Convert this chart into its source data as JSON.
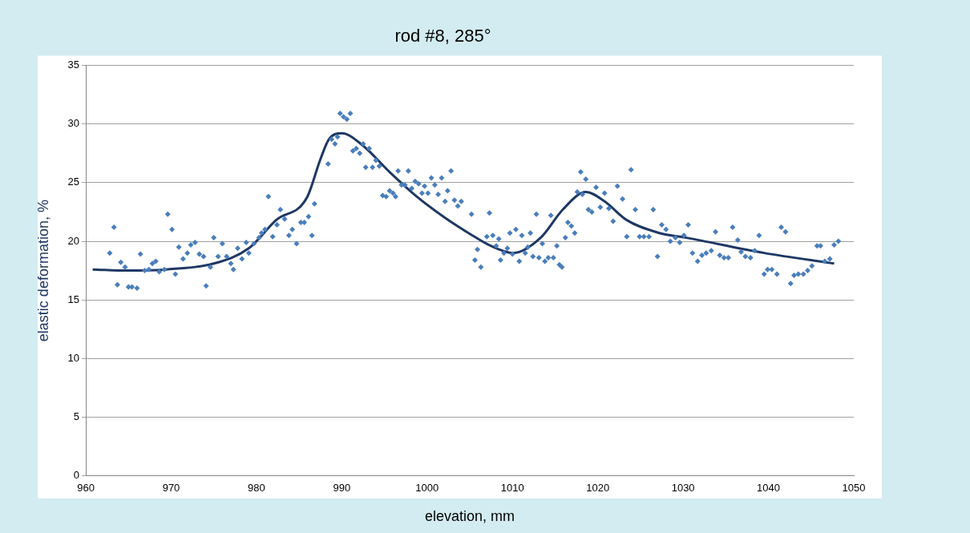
{
  "chart_data": {
    "type": "scatter",
    "title": "rod #8, 285°",
    "xlabel": "elevation, mm",
    "ylabel": "elastic deformation, %",
    "xlim": [
      960,
      1050
    ],
    "xticks": [
      960,
      970,
      980,
      990,
      1000,
      1010,
      1020,
      1030,
      1040,
      1050
    ],
    "ylim": [
      0,
      35
    ],
    "yticks": [
      0,
      5,
      10,
      15,
      20,
      25,
      30,
      35
    ],
    "grid": "y",
    "legend": false,
    "series": [
      {
        "color": "#4a7ebb",
        "marker": "diamond",
        "x": [
          962.8,
          963.3,
          963.7,
          964.1,
          964.6,
          965.0,
          965.4,
          966.0,
          966.4,
          966.9,
          967.4,
          967.8,
          968.2,
          968.6,
          969.2,
          969.6,
          970.1,
          970.5,
          970.9,
          971.4,
          971.9,
          972.3,
          972.8,
          973.3,
          973.8,
          974.1,
          974.6,
          975.0,
          975.5,
          976.0,
          976.5,
          977.0,
          977.3,
          977.8,
          978.3,
          978.8,
          979.1,
          979.7,
          980.3,
          980.6,
          981.0,
          981.4,
          981.9,
          982.4,
          982.8,
          983.3,
          983.8,
          984.2,
          984.7,
          985.2,
          985.6,
          986.1,
          986.5,
          986.8,
          988.4,
          988.8,
          989.2,
          989.5,
          989.8,
          990.2,
          990.6,
          991.0,
          991.3,
          991.7,
          992.1,
          992.5,
          992.8,
          993.2,
          993.6,
          994.0,
          994.4,
          994.8,
          995.2,
          995.6,
          996.0,
          996.3,
          996.6,
          997.0,
          997.4,
          997.8,
          998.2,
          998.6,
          999.0,
          999.4,
          999.7,
          1000.1,
          1000.5,
          1000.9,
          1001.3,
          1001.7,
          1002.1,
          1002.4,
          1002.8,
          1003.2,
          1003.6,
          1004.0,
          1005.2,
          1005.6,
          1005.9,
          1006.3,
          1007.0,
          1007.3,
          1007.7,
          1008.1,
          1008.4,
          1008.6,
          1009.0,
          1009.4,
          1009.7,
          1010.0,
          1010.4,
          1010.8,
          1011.1,
          1011.5,
          1011.8,
          1012.1,
          1012.4,
          1012.8,
          1013.1,
          1013.5,
          1013.8,
          1014.2,
          1014.5,
          1014.8,
          1015.2,
          1015.5,
          1015.8,
          1016.2,
          1016.5,
          1016.9,
          1017.3,
          1017.6,
          1018.0,
          1018.2,
          1018.6,
          1018.9,
          1019.3,
          1019.8,
          1020.3,
          1020.8,
          1021.3,
          1021.8,
          1022.3,
          1022.9,
          1023.4,
          1023.9,
          1024.4,
          1024.9,
          1025.4,
          1026.0,
          1026.5,
          1027.0,
          1027.5,
          1028.0,
          1028.5,
          1029.1,
          1029.6,
          1030.1,
          1030.6,
          1031.1,
          1031.7,
          1032.2,
          1032.7,
          1033.3,
          1033.8,
          1034.3,
          1034.8,
          1035.3,
          1035.8,
          1036.4,
          1036.8,
          1037.3,
          1037.9,
          1038.4,
          1038.9,
          1039.5,
          1039.9,
          1040.4,
          1041.0,
          1041.5,
          1042.0,
          1042.6,
          1043.0,
          1043.5,
          1044.1,
          1044.6,
          1045.1,
          1045.7,
          1046.1,
          1046.6,
          1047.2,
          1047.7,
          1048.2
        ],
        "values": [
          19.0,
          21.2,
          16.3,
          18.2,
          17.8,
          16.1,
          16.1,
          16.0,
          18.9,
          17.5,
          17.6,
          18.1,
          18.3,
          17.4,
          17.6,
          22.3,
          21.0,
          17.2,
          19.5,
          18.5,
          19.0,
          19.7,
          19.9,
          18.9,
          18.7,
          16.2,
          17.8,
          20.3,
          18.7,
          19.8,
          18.7,
          18.1,
          17.6,
          19.4,
          18.5,
          19.9,
          19.0,
          19.8,
          20.3,
          20.7,
          21.0,
          23.8,
          20.4,
          21.4,
          22.7,
          21.9,
          20.5,
          21.0,
          19.8,
          21.6,
          21.6,
          22.1,
          20.5,
          23.2,
          26.6,
          28.7,
          28.3,
          28.9,
          30.9,
          30.6,
          30.4,
          30.9,
          27.7,
          27.9,
          27.5,
          28.3,
          26.3,
          27.9,
          26.3,
          26.9,
          26.4,
          23.9,
          23.8,
          24.3,
          24.1,
          23.8,
          26.0,
          24.8,
          24.8,
          26.0,
          24.5,
          25.1,
          24.9,
          24.1,
          24.7,
          24.1,
          25.4,
          24.8,
          24.0,
          25.4,
          23.4,
          24.3,
          26.0,
          23.5,
          23.0,
          23.4,
          22.3,
          18.4,
          19.3,
          17.8,
          20.4,
          22.4,
          20.5,
          19.6,
          20.2,
          18.4,
          19.0,
          19.4,
          20.7,
          18.9,
          21.0,
          18.3,
          20.5,
          19.0,
          19.5,
          20.7,
          18.7,
          22.3,
          18.6,
          19.8,
          18.3,
          18.6,
          22.2,
          18.6,
          19.6,
          18.0,
          17.8,
          20.3,
          21.6,
          21.3,
          20.7,
          24.2,
          25.9,
          24.0,
          25.3,
          22.7,
          22.5,
          24.6,
          22.9,
          24.1,
          22.8,
          21.7,
          24.7,
          23.6,
          20.4,
          26.1,
          22.7,
          20.4,
          20.4,
          20.4,
          22.7,
          18.7,
          21.4,
          21.0,
          20.0,
          20.3,
          19.9,
          20.5,
          21.4,
          19.0,
          18.3,
          18.8,
          19.0,
          19.2,
          20.8,
          18.8,
          18.6,
          18.6,
          21.2,
          20.1,
          19.1,
          18.7,
          18.6,
          19.2,
          20.5,
          17.2,
          17.6,
          17.6,
          17.2,
          21.2,
          20.8,
          16.4,
          17.1,
          17.2,
          17.2,
          17.5,
          17.9,
          19.6,
          19.6,
          18.3,
          18.5,
          19.7,
          20.0
        ]
      },
      {
        "type": "line",
        "color": "#1f3864",
        "marker": "none",
        "line_style": "solid",
        "x": [
          960.8,
          965.0,
          969.4,
          975.0,
          979.1,
          982.3,
          985.9,
          987.5,
          988.5,
          990.0,
          992.4,
          995.6,
          998.8,
          1002.1,
          1005.3,
          1007.2,
          1010.1,
          1013.3,
          1015.9,
          1018.6,
          1020.8,
          1023.4,
          1027.2,
          1030.4,
          1039.5,
          1047.7
        ],
        "values": [
          17.6,
          17.5,
          17.6,
          18.1,
          19.4,
          21.8,
          23.7,
          27.0,
          28.7,
          29.2,
          28.2,
          25.9,
          23.8,
          22.0,
          20.5,
          19.7,
          19.0,
          20.3,
          22.7,
          24.2,
          23.4,
          21.8,
          20.7,
          20.3,
          19.0,
          18.1
        ]
      }
    ]
  }
}
